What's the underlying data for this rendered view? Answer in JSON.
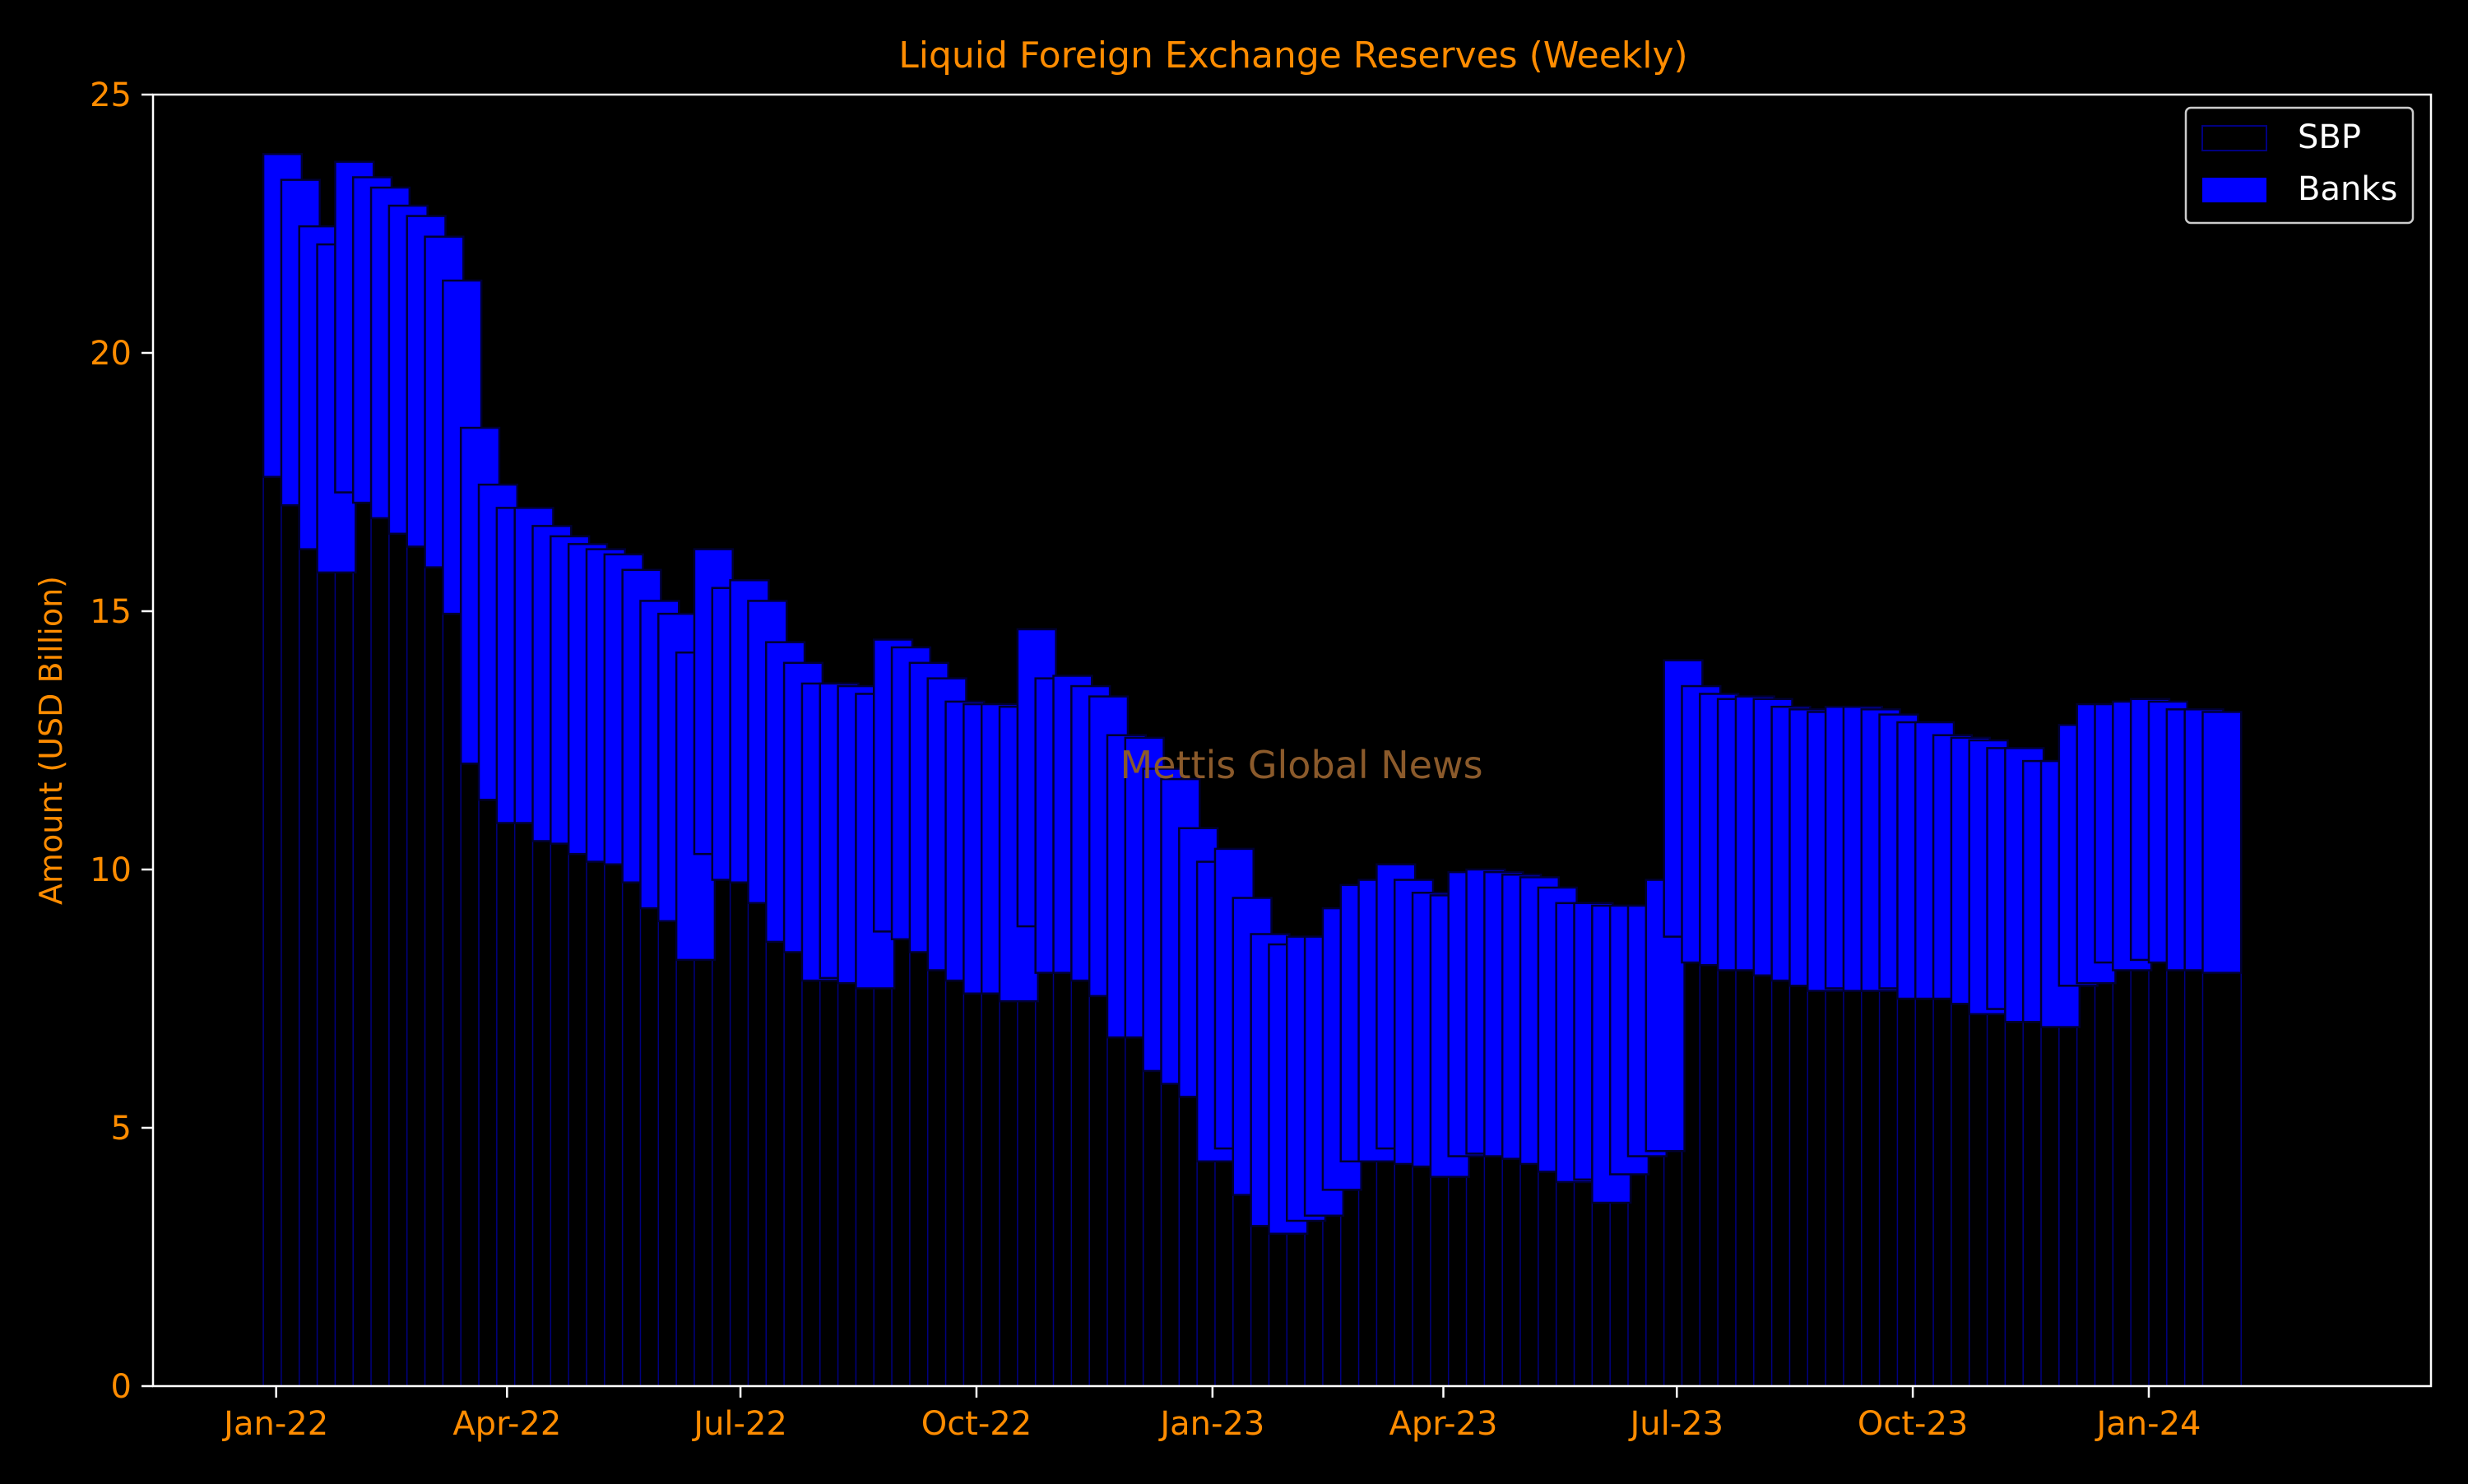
{
  "chart_data": {
    "type": "bar",
    "stacked": true,
    "title": "Liquid Foreign Exchange Reserves (Weekly)",
    "xlabel": "",
    "ylabel": "Amount (USD Billion)",
    "ylim": [
      0,
      25
    ],
    "xlim": [
      "2021-11-14",
      "2024-04-20"
    ],
    "y_ticks": [
      0,
      5,
      10,
      15,
      20,
      25
    ],
    "x_ticks": [
      {
        "date": "2022-01-01",
        "label": "Jan-22"
      },
      {
        "date": "2022-04-01",
        "label": "Apr-22"
      },
      {
        "date": "2022-07-01",
        "label": "Jul-22"
      },
      {
        "date": "2022-10-01",
        "label": "Oct-22"
      },
      {
        "date": "2023-01-01",
        "label": "Jan-23"
      },
      {
        "date": "2023-04-01",
        "label": "Apr-23"
      },
      {
        "date": "2023-07-01",
        "label": "Jul-23"
      },
      {
        "date": "2023-10-01",
        "label": "Oct-23"
      },
      {
        "date": "2024-01-01",
        "label": "Jan-24"
      }
    ],
    "legend": {
      "placement": "top-right"
    },
    "grid": false,
    "watermark": "Mettis Global News",
    "colors": {
      "background": "#000000",
      "text": "#ff8c00",
      "axis": "#ffffff",
      "sbp_fill": "#000000",
      "sbp_edge": "#000080",
      "banks_fill": "#0000ff",
      "watermark": "#8b5a2b"
    },
    "series": [
      {
        "name": "SBP",
        "values": [
          17.6,
          17.05,
          16.2,
          15.75,
          17.3,
          17.1,
          16.8,
          16.5,
          16.25,
          15.85,
          14.95,
          12.05,
          11.35,
          10.9,
          10.9,
          10.55,
          10.5,
          10.3,
          10.15,
          10.1,
          9.75,
          9.25,
          9.0,
          8.25,
          10.3,
          9.8,
          9.75,
          9.35,
          8.6,
          8.4,
          7.85,
          7.9,
          7.8,
          7.7,
          8.8,
          8.65,
          8.4,
          8.05,
          7.85,
          7.6,
          7.6,
          7.45,
          8.9,
          8.0,
          8.0,
          7.85,
          7.55,
          6.75,
          6.75,
          6.1,
          5.85,
          5.6,
          4.35,
          4.6,
          3.7,
          3.1,
          2.95,
          3.2,
          3.3,
          3.8,
          4.35,
          4.35,
          4.6,
          4.3,
          4.25,
          4.05,
          4.45,
          4.5,
          4.45,
          4.4,
          4.3,
          4.15,
          3.95,
          4.0,
          3.55,
          4.1,
          4.45,
          4.55,
          8.7,
          8.2,
          8.15,
          8.05,
          8.05,
          7.95,
          7.85,
          7.75,
          7.65,
          7.7,
          7.65,
          7.65,
          7.7,
          7.5,
          7.5,
          7.5,
          7.4,
          7.2,
          7.3,
          7.05,
          7.05,
          6.95,
          7.75,
          7.8,
          8.2,
          8.05,
          8.25,
          8.2,
          8.05,
          8.05,
          8.0
        ]
      },
      {
        "name": "Banks",
        "values": [
          6.25,
          6.3,
          6.25,
          6.35,
          6.4,
          6.3,
          6.4,
          6.35,
          6.4,
          6.4,
          6.45,
          6.5,
          6.1,
          6.1,
          6.1,
          6.1,
          5.95,
          6.0,
          6.05,
          6.0,
          6.05,
          5.95,
          5.95,
          5.95,
          5.9,
          5.65,
          5.85,
          5.85,
          5.8,
          5.6,
          5.75,
          5.7,
          5.75,
          5.7,
          5.65,
          5.65,
          5.6,
          5.65,
          5.4,
          5.6,
          5.6,
          5.7,
          5.75,
          5.7,
          5.75,
          5.7,
          5.8,
          5.85,
          5.8,
          5.85,
          5.9,
          5.2,
          5.8,
          5.8,
          5.75,
          5.65,
          5.6,
          5.5,
          5.4,
          5.45,
          5.35,
          5.45,
          5.5,
          5.5,
          5.3,
          5.45,
          5.5,
          5.5,
          5.5,
          5.5,
          5.55,
          5.5,
          5.4,
          5.35,
          5.75,
          5.2,
          4.85,
          5.25,
          5.35,
          5.35,
          5.25,
          5.25,
          5.3,
          5.35,
          5.3,
          5.35,
          5.4,
          5.45,
          5.5,
          5.45,
          5.3,
          5.35,
          5.35,
          5.1,
          5.15,
          5.3,
          5.05,
          5.3,
          5.05,
          5.15,
          5.05,
          5.4,
          5.0,
          5.2,
          5.05,
          5.05,
          5.05,
          5.05,
          5.05
        ]
      }
    ]
  }
}
